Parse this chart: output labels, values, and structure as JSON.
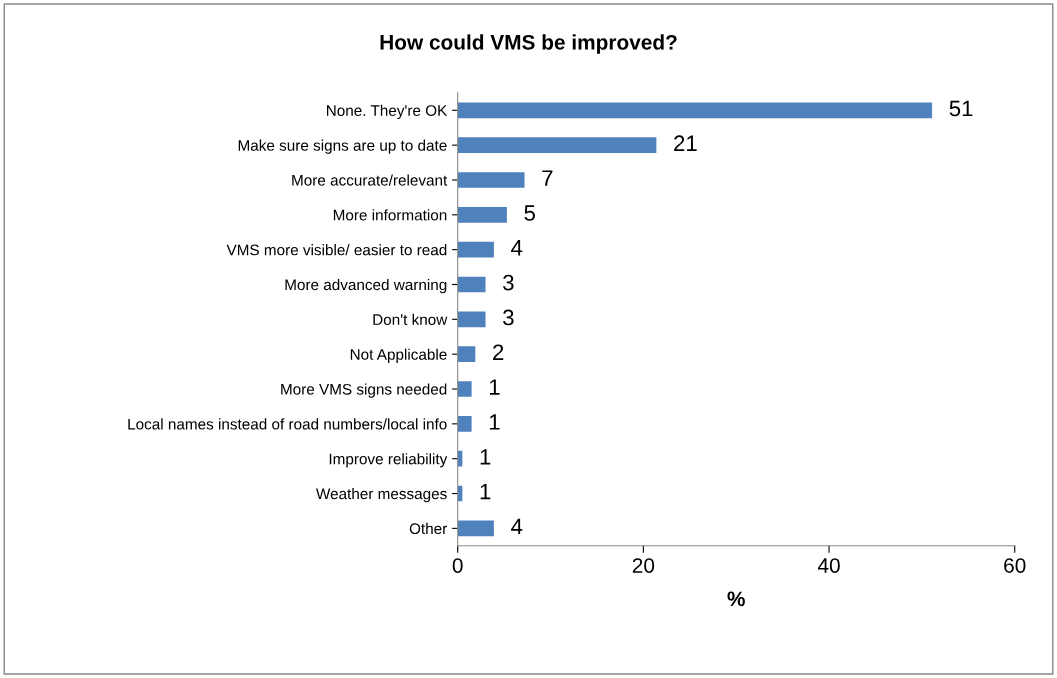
{
  "chart_data": {
    "type": "bar",
    "orientation": "horizontal",
    "title": "How could VMS be improved?",
    "xlabel": "%",
    "categories": [
      "None. They're OK",
      "Make sure signs are up to date",
      "More accurate/relevant",
      "More information",
      "VMS more visible/ easier to read",
      "More advanced warning",
      "Don't know",
      "Not Applicable",
      "More VMS signs needed",
      "Local names instead of road numbers/local info",
      "Improve reliability",
      "Weather messages",
      "Other"
    ],
    "values": [
      51.1,
      21.4,
      7.2,
      5.3,
      3.9,
      3.0,
      3.0,
      1.9,
      1.5,
      1.5,
      0.5,
      0.5,
      3.9
    ],
    "value_labels": [
      "51",
      "21",
      "7",
      "5",
      "4",
      "3",
      "3",
      "2",
      "1",
      "1",
      "1",
      "1",
      "4"
    ],
    "color": "#4f81bd",
    "xlim": [
      0,
      60
    ],
    "xticks": [
      0,
      20,
      40,
      60
    ],
    "grid": false,
    "legend": false
  }
}
